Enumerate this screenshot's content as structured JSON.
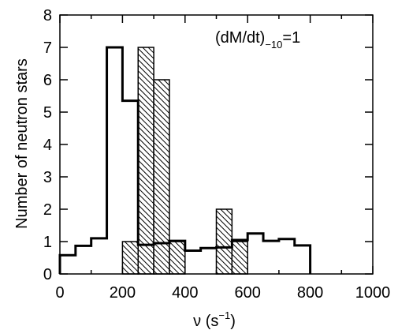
{
  "chart_data": {
    "type": "bar",
    "title": "",
    "xlabel": "ν (s⁻¹)",
    "xlabel_main": "ν (s",
    "xlabel_sup": "−1",
    "xlabel_end": ")",
    "ylabel": "Number of neutron stars",
    "xlim": [
      0,
      1000
    ],
    "ylim": [
      0,
      8
    ],
    "xticks": [
      "0",
      "200",
      "400",
      "600",
      "800",
      "1000"
    ],
    "yticks": [
      "0",
      "1",
      "2",
      "3",
      "4",
      "5",
      "6",
      "7",
      "8"
    ],
    "grid": false,
    "annotation": {
      "main": "(dM/dt)",
      "sub": "−10",
      "tail": "=1"
    },
    "series": [
      {
        "style": "step-outline",
        "bin_width": 50,
        "bin_edges": [
          0,
          50,
          100,
          150,
          200,
          250,
          300,
          350,
          400,
          450,
          500,
          550,
          600,
          650,
          700,
          750,
          800
        ],
        "values": [
          0.58,
          0.87,
          1.1,
          7.0,
          5.35,
          0.9,
          0.95,
          1.02,
          0.72,
          0.8,
          0.82,
          1.05,
          1.25,
          1.02,
          1.08,
          0.88
        ]
      },
      {
        "style": "hatched-bars",
        "bin_width": 50,
        "bin_edges": [
          200,
          250,
          300,
          350,
          400,
          450,
          500,
          550,
          600
        ],
        "values": [
          1,
          7,
          6,
          1,
          0,
          0,
          2,
          1
        ]
      }
    ]
  }
}
